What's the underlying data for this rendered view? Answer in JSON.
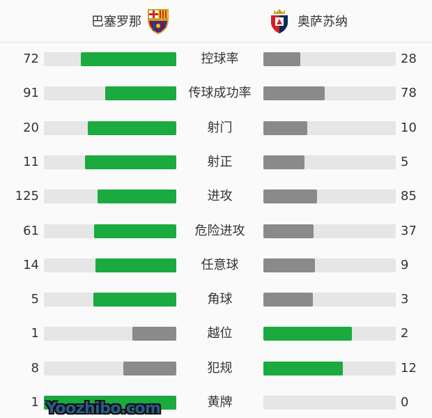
{
  "header": {
    "home_team": "巴塞罗那",
    "away_team": "奥萨苏纳",
    "home_logo_icon": "fc-barcelona-crest",
    "away_logo_icon": "osasuna-crest"
  },
  "colors": {
    "leading": "#1aaa3f",
    "trailing": "#8a8a8a",
    "track": "#e6e6e6"
  },
  "stats": [
    {
      "label": "控球率",
      "home": 72,
      "away": 28
    },
    {
      "label": "传球成功率",
      "home": 91,
      "away": 78
    },
    {
      "label": "射门",
      "home": 20,
      "away": 10
    },
    {
      "label": "射正",
      "home": 11,
      "away": 5
    },
    {
      "label": "进攻",
      "home": 125,
      "away": 85
    },
    {
      "label": "危险进攻",
      "home": 61,
      "away": 37
    },
    {
      "label": "任意球",
      "home": 14,
      "away": 9
    },
    {
      "label": "角球",
      "home": 5,
      "away": 3
    },
    {
      "label": "越位",
      "home": 1,
      "away": 2
    },
    {
      "label": "犯规",
      "home": 8,
      "away": 12
    },
    {
      "label": "黄牌",
      "home": 1,
      "away": 0
    }
  ],
  "watermark": "Yoozhibo.com"
}
